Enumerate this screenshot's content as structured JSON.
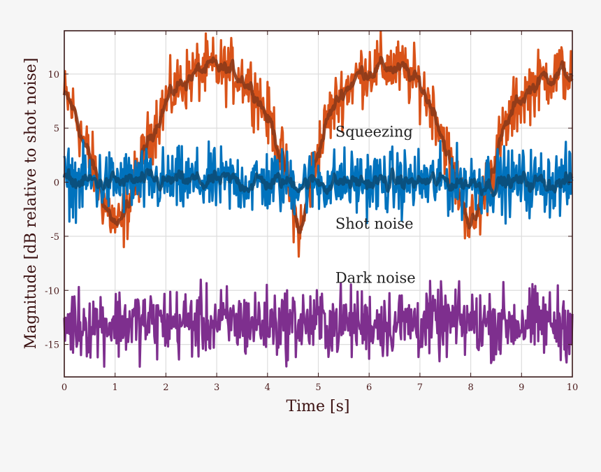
{
  "chart_data": {
    "type": "line",
    "title": "",
    "xlabel": "Time [s]",
    "ylabel": "Magnitude [dB relative to shot noise]",
    "xlim": [
      0,
      10
    ],
    "ylim": [
      -18,
      14
    ],
    "grid": true,
    "x_ticks": [
      0,
      1,
      2,
      3,
      4,
      5,
      6,
      7,
      8,
      9,
      10
    ],
    "y_ticks": [
      10,
      5,
      0,
      -5,
      -10,
      -15
    ],
    "x_tick_labels": [
      "0",
      "1",
      "2",
      "3",
      "4",
      "5",
      "6",
      "7",
      "8",
      "9",
      "10"
    ],
    "y_tick_labels": [
      "10",
      "5",
      "0",
      "-5",
      "-10",
      "-15"
    ],
    "annotations": [
      {
        "text": "Squeezing",
        "x": 5.5,
        "y": 4.2
      },
      {
        "text": "Shot noise",
        "x": 5.5,
        "y": -4.3
      },
      {
        "text": "Dark noise",
        "x": 5.5,
        "y": -9.3
      }
    ],
    "series": [
      {
        "name": "Squeezing",
        "raw_color": "#d95319",
        "avg_color": "#8b3a1a",
        "noise_amplitude": 1.4,
        "x": [
          0,
          0.2,
          0.4,
          0.6,
          0.8,
          1.0,
          1.1,
          1.2,
          1.4,
          1.6,
          1.8,
          2.0,
          2.3,
          2.6,
          2.9,
          3.2,
          3.5,
          3.8,
          4.1,
          4.3,
          4.5,
          4.6,
          4.7,
          4.8,
          5.0,
          5.2,
          5.5,
          5.8,
          6.1,
          6.4,
          6.7,
          7.0,
          7.3,
          7.5,
          7.7,
          7.9,
          8.0,
          8.1,
          8.3,
          8.6,
          8.9,
          9.2,
          9.5,
          9.8,
          10.0
        ],
        "values": [
          8,
          6.5,
          3.5,
          1,
          -2,
          -3.8,
          -4.2,
          -3,
          0,
          3,
          5.5,
          7.5,
          9.2,
          10.2,
          10.5,
          10.3,
          9.8,
          8.2,
          5,
          2,
          -2,
          -4.5,
          -4,
          -1,
          3,
          6,
          8.5,
          10,
          10.6,
          10.7,
          10.2,
          9,
          6.5,
          3.5,
          0,
          -2.5,
          -3.8,
          -3.5,
          -0.5,
          4,
          7.2,
          8.8,
          9.8,
          10.2,
          9.8
        ]
      },
      {
        "name": "Shot noise",
        "raw_color": "#0072bd",
        "avg_color": "#0b4c77",
        "noise_amplitude": 1.5,
        "x": [
          0,
          1,
          2,
          3,
          4,
          5,
          6,
          7,
          8,
          9,
          10
        ],
        "values": [
          0,
          0,
          0,
          0,
          0,
          0,
          0,
          0,
          0,
          0,
          0
        ]
      },
      {
        "name": "Dark noise",
        "raw_color": "#7e2f8e",
        "avg_color": "#7e2f8e",
        "noise_amplitude": 1.6,
        "x": [
          0,
          1,
          2,
          3,
          4,
          5,
          6,
          7,
          8,
          9,
          10
        ],
        "values": [
          -13,
          -13,
          -13,
          -13,
          -13,
          -13,
          -13,
          -13,
          -13,
          -13,
          -13
        ]
      }
    ]
  }
}
